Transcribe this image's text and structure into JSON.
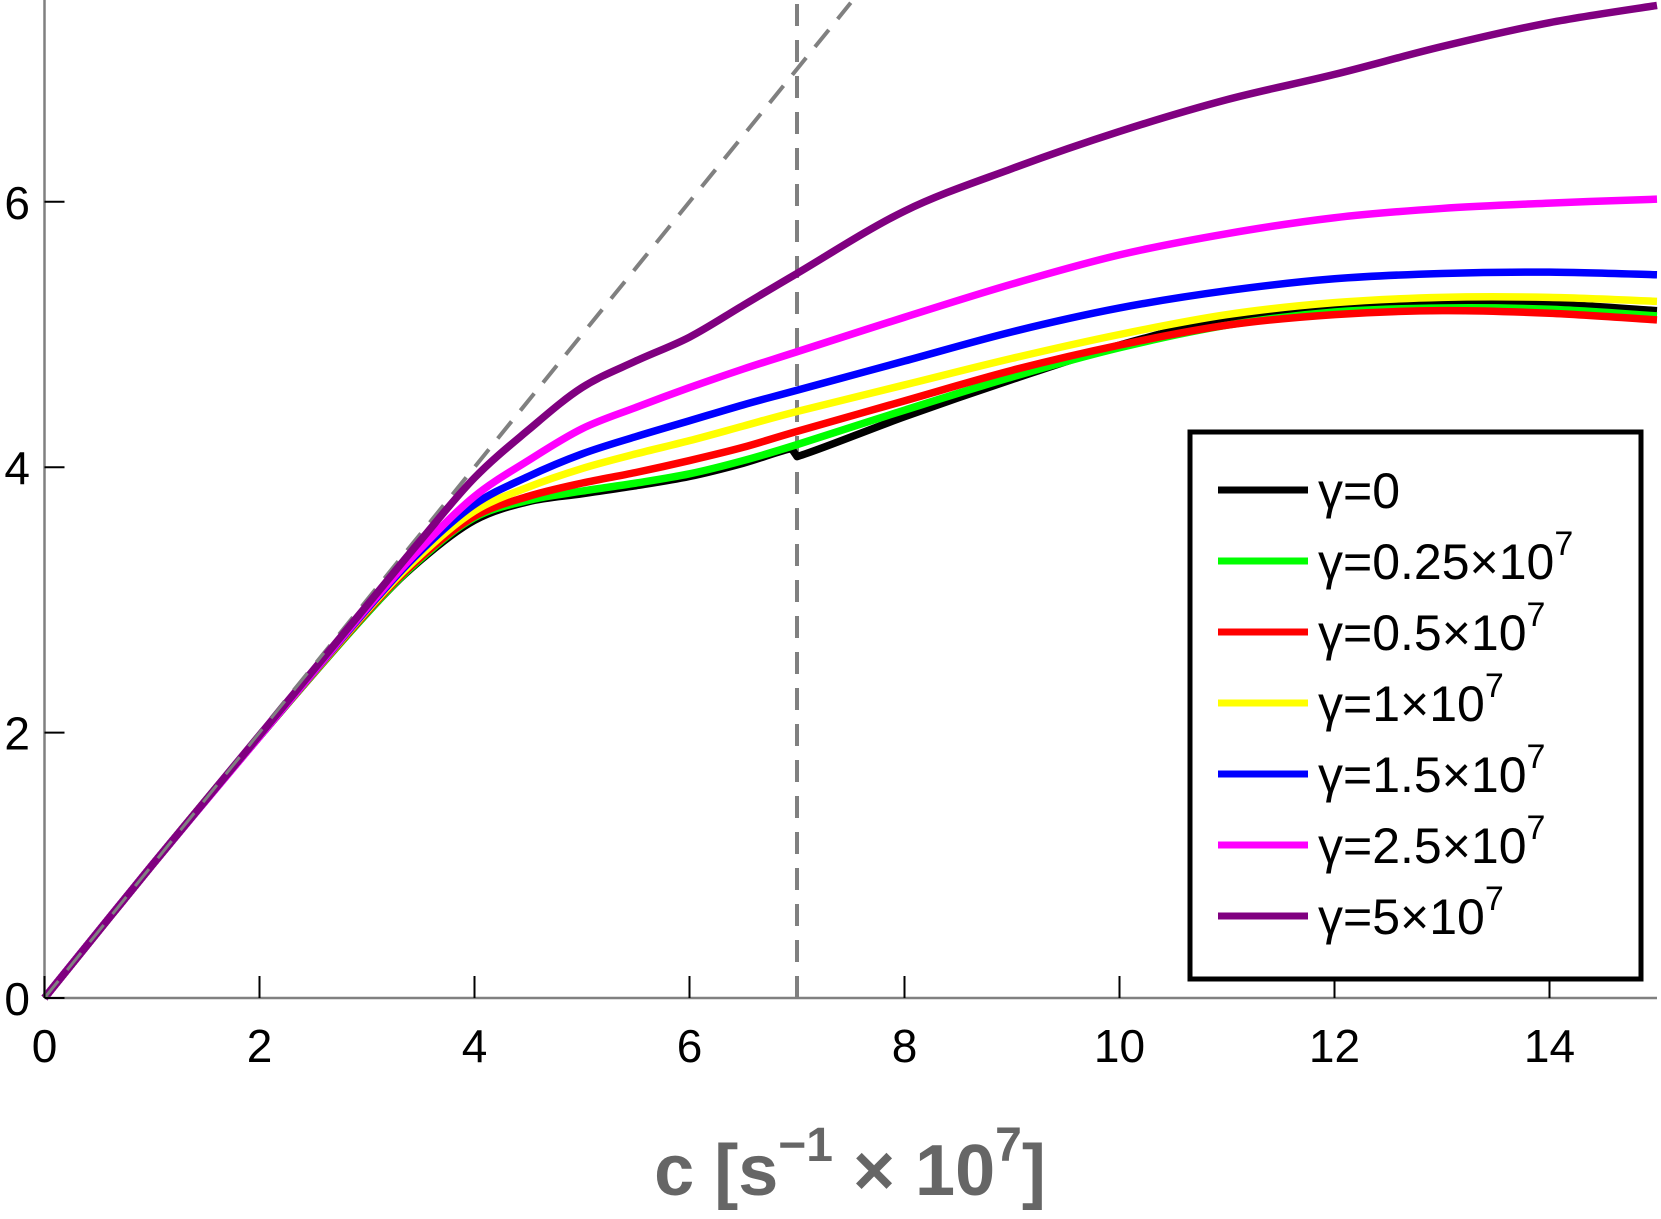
{
  "chart_data": {
    "type": "line",
    "title": "",
    "xlabel": {
      "main": "c [s",
      "sup1": "−1",
      "mid": " × 10",
      "sup2": "7",
      "end": "]"
    },
    "ylabel": "",
    "xlim": [
      0,
      15
    ],
    "ylim": [
      0,
      7.5
    ],
    "xticks": [
      0,
      2,
      4,
      6,
      8,
      10,
      12,
      14
    ],
    "yticks": [
      0,
      2,
      4,
      6
    ],
    "xtick_labels": [
      "0",
      "2",
      "4",
      "6",
      "8",
      "10",
      "12",
      "14"
    ],
    "ytick_labels": [
      "0",
      "2",
      "4",
      "6"
    ],
    "grid": false,
    "legend_placement": "lower-right",
    "reference_lines": [
      {
        "type": "diagonal",
        "equation": "y=x",
        "style": "dashed",
        "color": "#808080"
      },
      {
        "type": "vertical",
        "x": 7,
        "style": "dashed",
        "color": "#808080"
      }
    ],
    "series": [
      {
        "name": "γ=0",
        "label": {
          "pre": "γ=0",
          "sup": ""
        },
        "color": "#000000",
        "x": [
          0,
          1,
          2,
          3,
          3.5,
          4,
          4.5,
          5,
          5.5,
          6,
          6.5,
          6.95,
          7,
          8,
          9,
          10,
          11,
          12,
          13,
          14,
          15
        ],
        "y": [
          0,
          1.0,
          1.97,
          2.9,
          3.3,
          3.6,
          3.74,
          3.8,
          3.86,
          3.93,
          4.03,
          4.14,
          4.08,
          4.38,
          4.66,
          4.92,
          5.12,
          5.22,
          5.24,
          5.23,
          5.18
        ]
      },
      {
        "name": "γ=0.25×10^7",
        "label": {
          "pre": "γ=0.25×10",
          "sup": "7"
        },
        "color": "#00ff00",
        "x": [
          0,
          1,
          2,
          3,
          3.5,
          4,
          4.5,
          5,
          5.5,
          6,
          6.5,
          7,
          8,
          9,
          10,
          11,
          12,
          13,
          14,
          15
        ],
        "y": [
          0,
          1.0,
          1.97,
          2.9,
          3.31,
          3.62,
          3.75,
          3.82,
          3.88,
          3.95,
          4.05,
          4.17,
          4.43,
          4.68,
          4.9,
          5.07,
          5.17,
          5.2,
          5.19,
          5.14
        ]
      },
      {
        "name": "γ=0.5×10^7",
        "label": {
          "pre": "γ=0.5×10",
          "sup": "7"
        },
        "color": "#ff0000",
        "x": [
          0,
          1,
          2,
          3,
          3.5,
          4,
          4.5,
          5,
          5.5,
          6,
          6.5,
          7,
          8,
          9,
          10,
          11,
          12,
          13,
          14,
          15
        ],
        "y": [
          0,
          1.0,
          1.97,
          2.91,
          3.32,
          3.63,
          3.78,
          3.88,
          3.96,
          4.05,
          4.15,
          4.27,
          4.5,
          4.73,
          4.92,
          5.07,
          5.15,
          5.18,
          5.16,
          5.11
        ]
      },
      {
        "name": "γ=1×10^7",
        "label": {
          "pre": "γ=1×10",
          "sup": "7"
        },
        "color": "#ffff00",
        "x": [
          0,
          1,
          2,
          3,
          3.5,
          4,
          4.5,
          5,
          5.5,
          6,
          6.5,
          7,
          8,
          9,
          10,
          11,
          12,
          13,
          14,
          15
        ],
        "y": [
          0,
          1.0,
          1.97,
          2.92,
          3.34,
          3.67,
          3.85,
          3.99,
          4.1,
          4.2,
          4.31,
          4.42,
          4.62,
          4.82,
          5.0,
          5.15,
          5.24,
          5.28,
          5.28,
          5.25
        ]
      },
      {
        "name": "γ=1.5×10^7",
        "label": {
          "pre": "γ=1.5×10",
          "sup": "7"
        },
        "color": "#0000ff",
        "x": [
          0,
          1,
          2,
          3,
          3.5,
          4,
          4.5,
          5,
          5.5,
          6,
          6.5,
          7,
          8,
          9,
          10,
          11,
          12,
          13,
          14,
          15
        ],
        "y": [
          0,
          1.0,
          1.97,
          2.93,
          3.37,
          3.72,
          3.93,
          4.1,
          4.23,
          4.35,
          4.47,
          4.58,
          4.8,
          5.02,
          5.2,
          5.33,
          5.42,
          5.46,
          5.47,
          5.45
        ]
      },
      {
        "name": "γ=2.5×10^7",
        "label": {
          "pre": "γ=2.5×10",
          "sup": "7"
        },
        "color": "#ff00ff",
        "x": [
          0,
          1,
          2,
          3,
          3.5,
          4,
          4.5,
          5,
          5.5,
          6,
          6.5,
          7,
          8,
          9,
          10,
          11,
          12,
          13,
          14,
          15
        ],
        "y": [
          0,
          1.0,
          1.97,
          2.94,
          3.39,
          3.78,
          4.05,
          4.29,
          4.45,
          4.6,
          4.74,
          4.87,
          5.13,
          5.38,
          5.6,
          5.76,
          5.88,
          5.95,
          5.99,
          6.02
        ]
      },
      {
        "name": "γ=5×10^7",
        "label": {
          "pre": "γ=5×10",
          "sup": "7"
        },
        "color": "#800080",
        "x": [
          0,
          1,
          2,
          3,
          3.5,
          4,
          4.5,
          5,
          5.5,
          6,
          6.5,
          7,
          8,
          9,
          10,
          11,
          12,
          13,
          14,
          15
        ],
        "y": [
          0,
          1.0,
          1.98,
          2.96,
          3.45,
          3.92,
          4.28,
          4.6,
          4.8,
          4.98,
          5.22,
          5.46,
          5.93,
          6.25,
          6.53,
          6.77,
          6.96,
          7.17,
          7.35,
          7.48
        ]
      }
    ]
  }
}
